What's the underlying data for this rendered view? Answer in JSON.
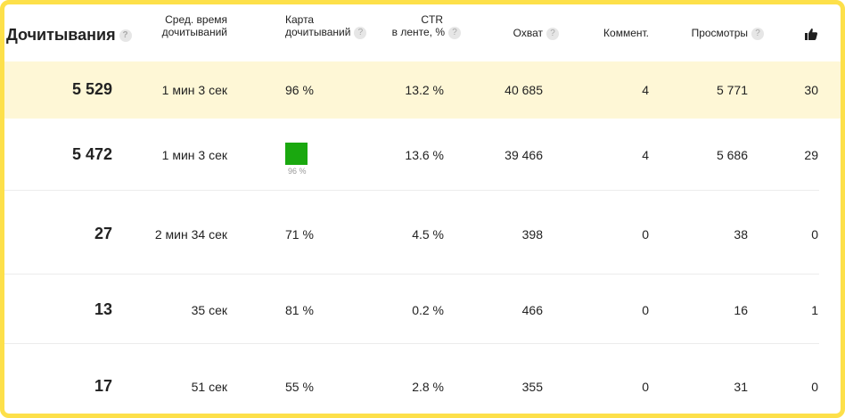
{
  "headers": {
    "reads": "Дочитывания",
    "avg_time_l1": "Сред. время",
    "avg_time_l2": "дочитываний",
    "map_l1": "Карта",
    "map_l2": "дочитываний",
    "ctr_l1": "CTR",
    "ctr_l2": "в ленте, %",
    "reach": "Охват",
    "comments": "Коммент.",
    "views": "Просмотры",
    "help_glyph": "?"
  },
  "rows": [
    {
      "reads": "5 529",
      "avg_time": "1 мин 3 сек",
      "map": "96 %",
      "ctr": "13.2 %",
      "reach": "40 685",
      "comments": "4",
      "views": "5 771",
      "likes": "30"
    },
    {
      "reads": "5 472",
      "avg_time": "1 мин 3 сек",
      "map": "96 %",
      "ctr": "13.6 %",
      "reach": "39 466",
      "comments": "4",
      "views": "5 686",
      "likes": "29"
    },
    {
      "reads": "27",
      "avg_time": "2 мин 34 сек",
      "map": "71 %",
      "ctr": "4.5 %",
      "reach": "398",
      "comments": "0",
      "views": "38",
      "likes": "0"
    },
    {
      "reads": "13",
      "avg_time": "35 сек",
      "map": "81 %",
      "ctr": "0.2 %",
      "reach": "466",
      "comments": "0",
      "views": "16",
      "likes": "1"
    },
    {
      "reads": "17",
      "avg_time": "51 сек",
      "map": "55 %",
      "ctr": "2.8 %",
      "reach": "355",
      "comments": "0",
      "views": "31",
      "likes": "0"
    }
  ],
  "colors": {
    "frame": "#fde04a",
    "highlight_row": "#fef7d6",
    "map_block": "#1aa80f"
  },
  "icons": {
    "likes_header": "thumbs-up-icon",
    "help": "help-icon"
  }
}
